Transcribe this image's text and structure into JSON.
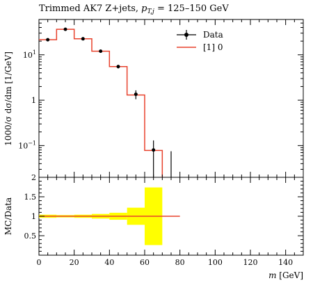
{
  "chart_data": [
    {
      "type": "line",
      "title_main": "Trimmed AK7 Z+jets, ",
      "title_var": "p",
      "title_sub": "T,j",
      "title_range": " = 125–150 GeV",
      "ylabel": "1000/σ dσ/dm [1/GeV]",
      "yscale": "log",
      "ylim": [
        0.02,
        60
      ],
      "y_tick_labels": [
        "10^-1",
        "1",
        "10^1"
      ],
      "legend": {
        "placement": "top-right",
        "entries": [
          "Data",
          "[1] 0"
        ]
      },
      "colors": {
        "data": "#000000",
        "mc": "#e8412c"
      },
      "data": {
        "name": "Data",
        "x": [
          5,
          15,
          25,
          35,
          45,
          55,
          65,
          75
        ],
        "y": [
          21.5,
          36.5,
          22.5,
          12.0,
          5.5,
          1.35,
          0.08,
          0
        ],
        "ylo": [
          20.6,
          35.2,
          21.6,
          11.2,
          5.0,
          1.05,
          0.02,
          0.02
        ],
        "yhi": [
          22.4,
          37.8,
          23.4,
          12.8,
          6.0,
          1.65,
          0.13,
          0.075
        ]
      },
      "mc": {
        "name": "[1] 0",
        "edges": [
          0,
          10,
          20,
          30,
          40,
          50,
          60,
          70
        ],
        "values": [
          21.5,
          36.5,
          22.5,
          12.0,
          5.5,
          1.3,
          0.078
        ]
      }
    },
    {
      "type": "line",
      "ylabel": "MC/Data",
      "xlabel_var": "m",
      "xlabel_unit": " [GeV]",
      "xlim": [
        0,
        150
      ],
      "ylim": [
        0,
        2
      ],
      "x_ticks": [
        "0",
        "20",
        "40",
        "60",
        "80",
        "100",
        "120",
        "140"
      ],
      "y_ticks": [
        "0.5",
        "1",
        "1.5",
        "2"
      ],
      "colors": {
        "band": "#ffff00",
        "line": "#e8412c"
      },
      "ratio_line": {
        "x": [
          0,
          80
        ],
        "y": 1.0
      },
      "band": [
        {
          "x0": 0,
          "x1": 10,
          "lo": 0.96,
          "hi": 1.04
        },
        {
          "x0": 10,
          "x1": 20,
          "lo": 0.97,
          "hi": 1.03
        },
        {
          "x0": 20,
          "x1": 30,
          "lo": 0.96,
          "hi": 1.04
        },
        {
          "x0": 30,
          "x1": 40,
          "lo": 0.94,
          "hi": 1.06
        },
        {
          "x0": 40,
          "x1": 50,
          "lo": 0.91,
          "hi": 1.09
        },
        {
          "x0": 50,
          "x1": 60,
          "lo": 0.78,
          "hi": 1.22
        },
        {
          "x0": 60,
          "x1": 70,
          "lo": 0.26,
          "hi": 1.74
        }
      ]
    }
  ]
}
